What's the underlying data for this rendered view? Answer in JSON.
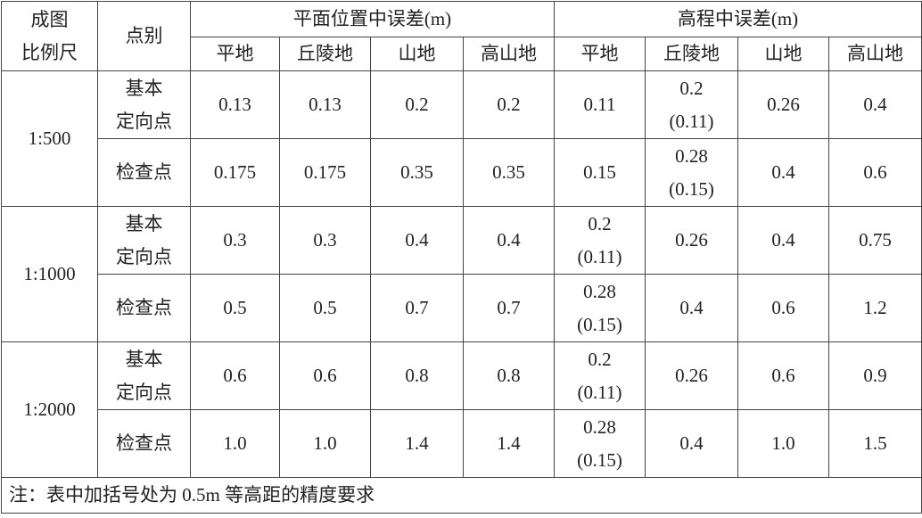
{
  "header": {
    "corner": "成图\n比例尺",
    "point_type": "点别",
    "groups": [
      "平面位置中误差(m)",
      "高程中误差(m)"
    ],
    "terrains": [
      "平地",
      "丘陵地",
      "山地",
      "高山地",
      "平地",
      "丘陵地",
      "山地",
      "高山地"
    ]
  },
  "table": {
    "groups": [
      {
        "scale": "1:500",
        "rows": [
          {
            "type": "基本\n定向点",
            "values": [
              "0.13",
              "0.13",
              "0.2",
              "0.2",
              "0.11",
              "0.2\n(0.11)",
              "0.26",
              "0.4"
            ]
          },
          {
            "type": "检查点",
            "values": [
              "0.175",
              "0.175",
              "0.35",
              "0.35",
              "0.15",
              "0.28\n(0.15)",
              "0.4",
              "0.6"
            ]
          }
        ]
      },
      {
        "scale": "1:1000",
        "rows": [
          {
            "type": "基本\n定向点",
            "values": [
              "0.3",
              "0.3",
              "0.4",
              "0.4",
              "0.2\n(0.11)",
              "0.26",
              "0.4",
              "0.75"
            ]
          },
          {
            "type": "检查点",
            "values": [
              "0.5",
              "0.5",
              "0.7",
              "0.7",
              "0.28\n(0.15)",
              "0.4",
              "0.6",
              "1.2"
            ]
          }
        ]
      },
      {
        "scale": "1:2000",
        "rows": [
          {
            "type": "基本\n定向点",
            "values": [
              "0.6",
              "0.6",
              "0.8",
              "0.8",
              "0.2\n(0.11)",
              "0.26",
              "0.6",
              "0.9"
            ]
          },
          {
            "type": "检查点",
            "values": [
              "1.0",
              "1.0",
              "1.4",
              "1.4",
              "0.28\n(0.15)",
              "0.4",
              "1.0",
              "1.5"
            ]
          }
        ]
      }
    ]
  },
  "note": "注：表中加括号处为 0.5m 等高距的精度要求"
}
